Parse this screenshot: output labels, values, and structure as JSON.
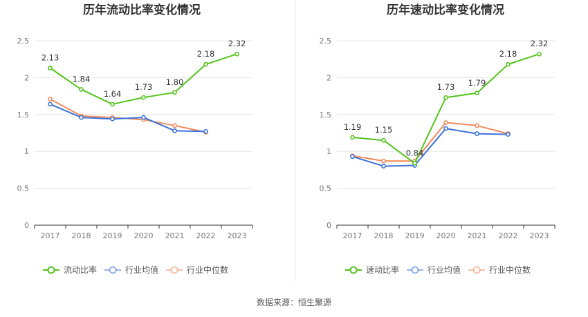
{
  "source": "数据来源：恒生聚源",
  "colors": {
    "primary": "#52c41a",
    "industry_avg": "#3b73d8",
    "industry_median": "#f28a5e",
    "grid": "#e6e6e6",
    "axis": "#333333",
    "divider": "#e8e8e8"
  },
  "chart_data": [
    {
      "type": "line",
      "title": "历年流动比率变化情况",
      "categories": [
        "2017",
        "2018",
        "2019",
        "2020",
        "2021",
        "2022",
        "2023"
      ],
      "yticks": [
        "0",
        "0.5",
        "1",
        "1.5",
        "2",
        "2.5"
      ],
      "ylim": [
        0,
        2.5
      ],
      "grid": true,
      "legend_position": "bottom",
      "series": [
        {
          "name": "流动比率",
          "color": "#52c41a",
          "values": [
            2.13,
            1.84,
            1.64,
            1.73,
            1.8,
            2.18,
            2.32
          ],
          "labels": [
            "2.13",
            "1.84",
            "1.64",
            "1.73",
            "1.80",
            "2.18",
            "2.32"
          ]
        },
        {
          "name": "行业均值",
          "color": "#3b73d8",
          "values": [
            1.64,
            1.46,
            1.44,
            1.46,
            1.28,
            1.27,
            null
          ]
        },
        {
          "name": "行业中位数",
          "color": "#f28a5e",
          "values": [
            1.71,
            1.48,
            1.46,
            1.43,
            1.35,
            1.26,
            null
          ]
        }
      ]
    },
    {
      "type": "line",
      "title": "历年速动比率变化情况",
      "categories": [
        "2017",
        "2018",
        "2019",
        "2020",
        "2021",
        "2022",
        "2023"
      ],
      "yticks": [
        "0",
        "0.5",
        "1",
        "1.5",
        "2",
        "2.5"
      ],
      "ylim": [
        0,
        2.5
      ],
      "grid": true,
      "legend_position": "bottom",
      "series": [
        {
          "name": "速动比率",
          "color": "#52c41a",
          "values": [
            1.19,
            1.15,
            0.84,
            1.73,
            1.79,
            2.18,
            2.32
          ],
          "labels": [
            "1.19",
            "1.15",
            "0.84",
            "1.73",
            "1.79",
            "2.18",
            "2.32"
          ]
        },
        {
          "name": "行业均值",
          "color": "#3b73d8",
          "values": [
            0.93,
            0.8,
            0.81,
            1.31,
            1.24,
            1.23,
            null
          ]
        },
        {
          "name": "行业中位数",
          "color": "#f28a5e",
          "values": [
            0.94,
            0.87,
            0.87,
            1.39,
            1.35,
            1.24,
            null
          ]
        }
      ]
    }
  ]
}
